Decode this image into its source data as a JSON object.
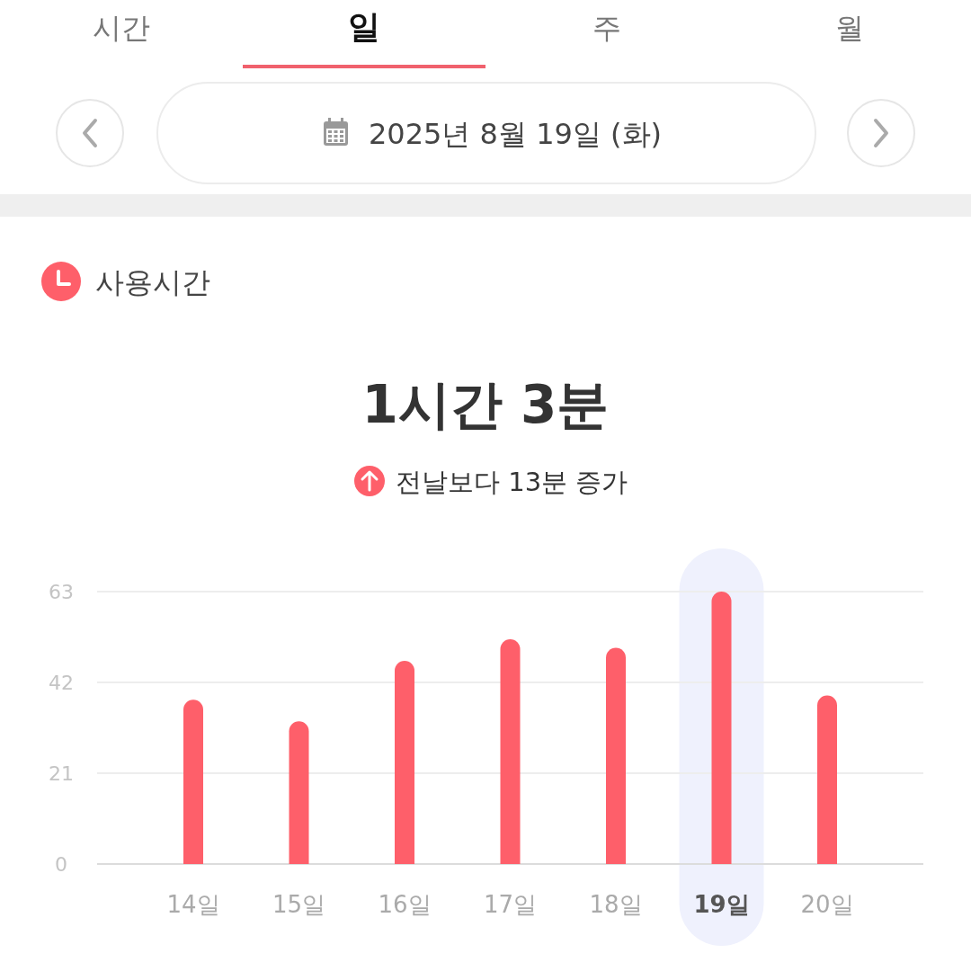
{
  "chart_data": {
    "type": "bar",
    "title": "사용시간",
    "subtitle": "1시간 3분",
    "annotations": [
      "시간",
      "일",
      "주",
      "월",
      "2025년 8월 19일 (화)",
      "전날보다 13분 증가"
    ],
    "categories": [
      "14일",
      "15일",
      "16일",
      "17일",
      "18일",
      "19일",
      "20일"
    ],
    "values": [
      38,
      33,
      47,
      52,
      50,
      63,
      39
    ],
    "color": "#fe5f6a",
    "ylim": [
      0,
      63
    ],
    "yticks": [
      0,
      21,
      42,
      63
    ],
    "grid": "y",
    "bands": [
      {
        "axis": "x",
        "from": "19일",
        "to": "19일",
        "color": "#eff1fd"
      }
    ]
  }
}
